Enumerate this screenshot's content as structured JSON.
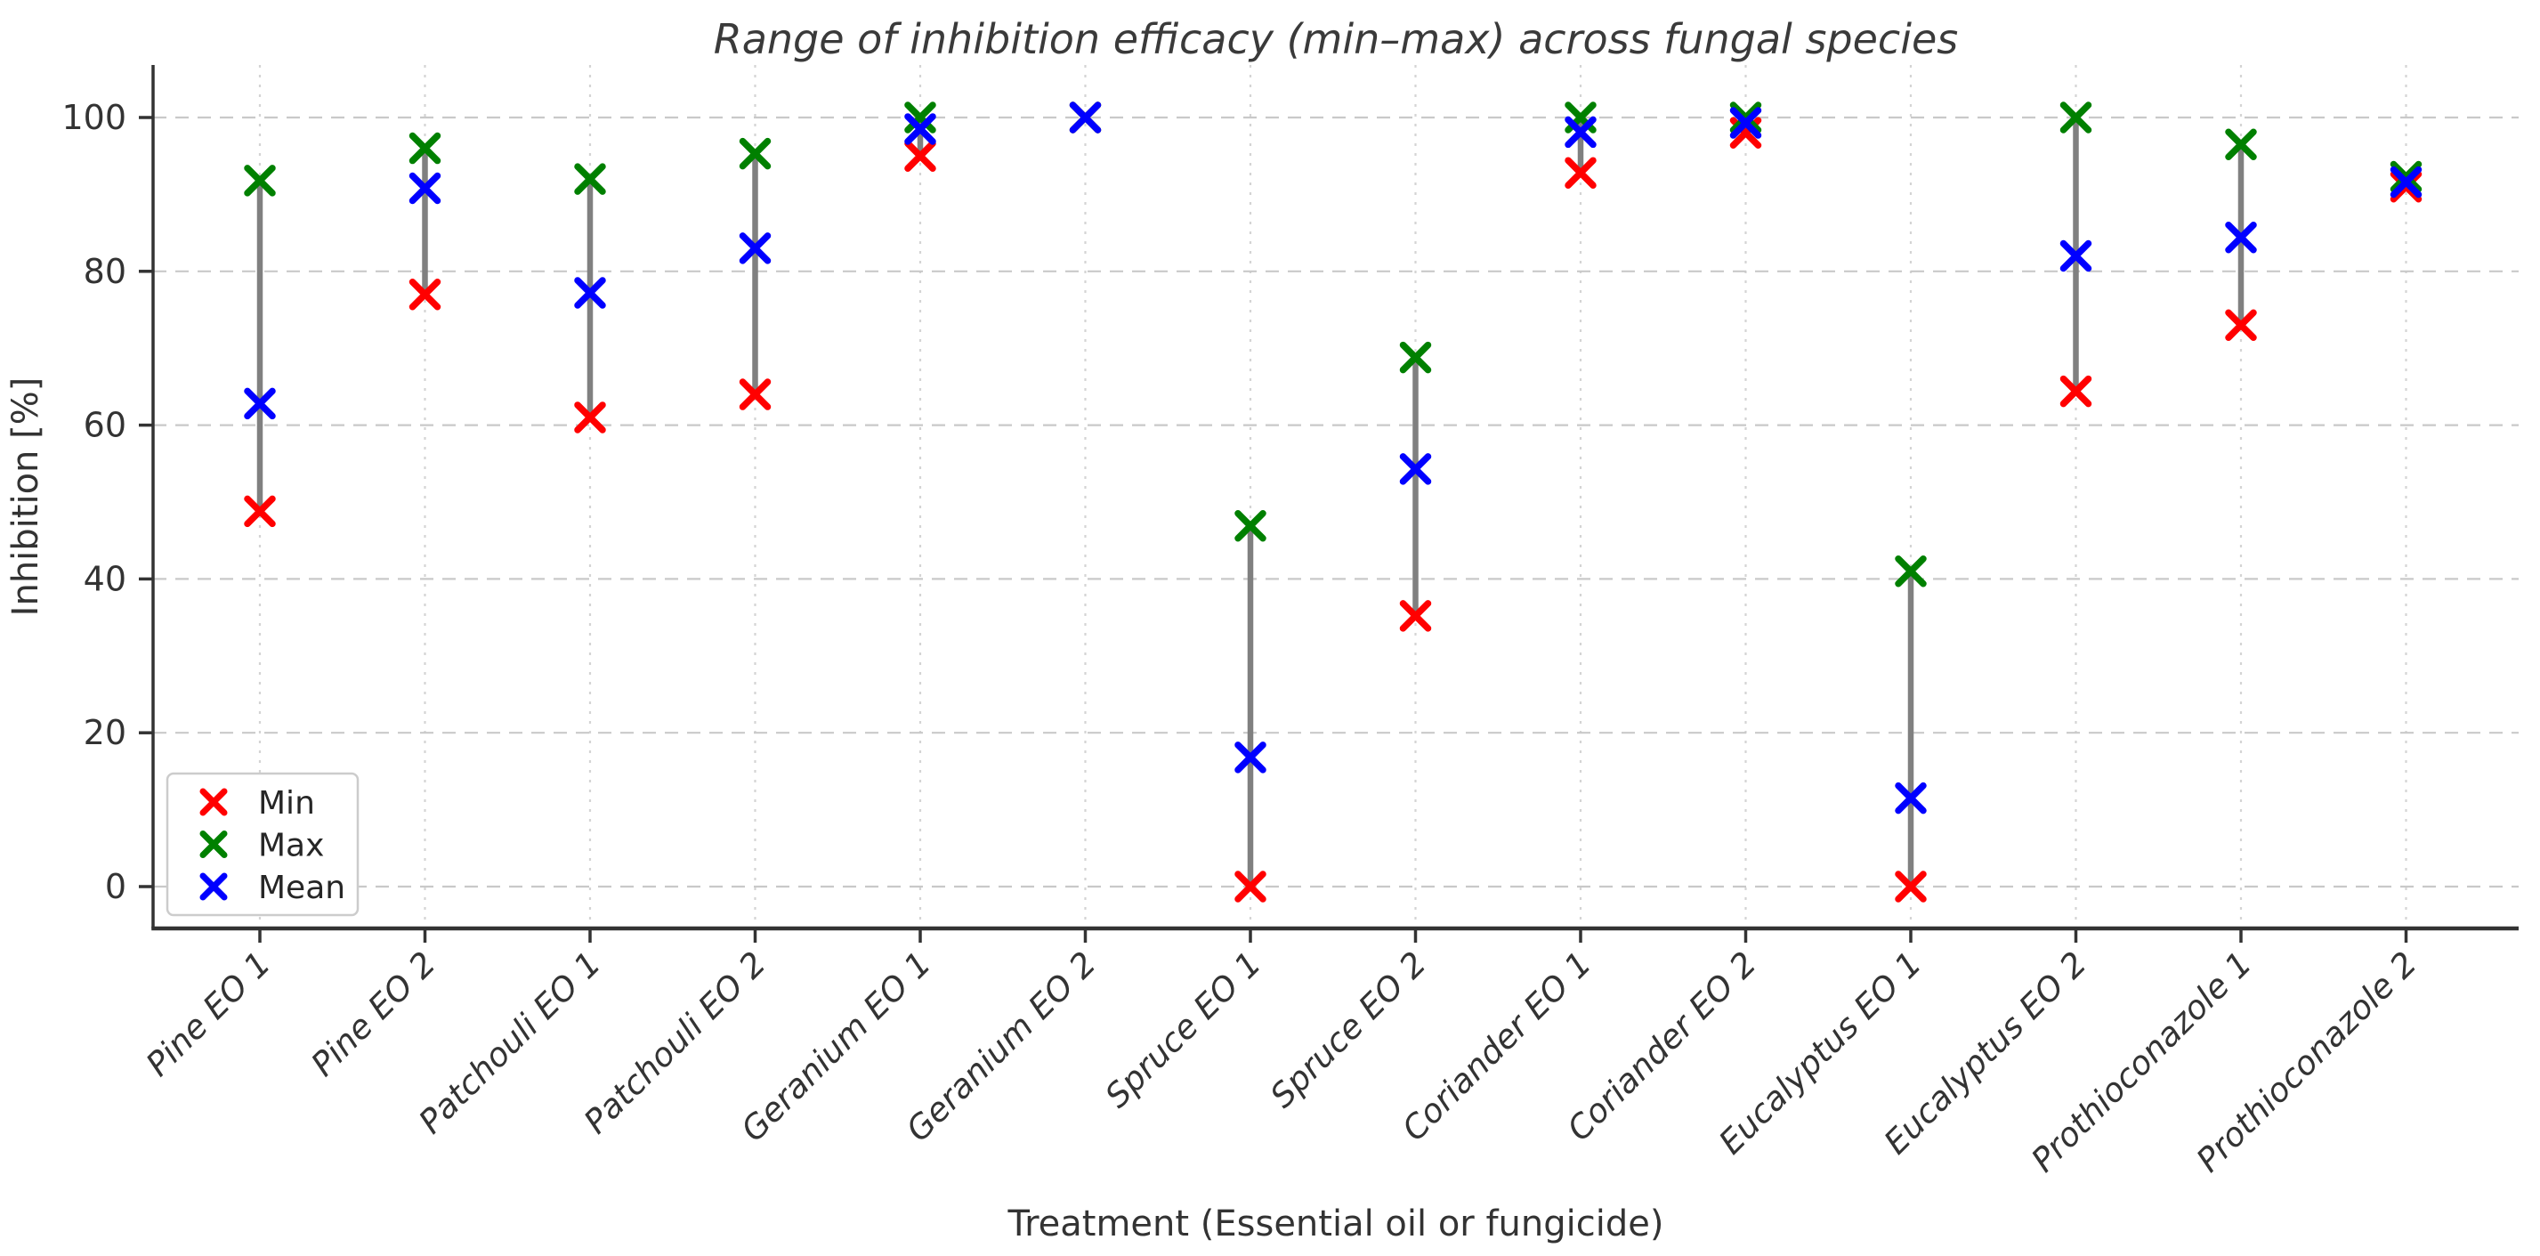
{
  "chart_data": {
    "type": "scatter",
    "title": "Range of inhibition efficacy (min–max) across fungal species",
    "xlabel": "Treatment (Essential oil or fungicide)",
    "ylabel": "Inhibition [%]",
    "categories": [
      "Pine EO 1",
      "Pine EO 2",
      "Patchouli EO 1",
      "Patchouli EO 2",
      "Geranium EO 1",
      "Geranium EO 2",
      "Spruce EO 1",
      "Spruce EO 2",
      "Coriander EO 1",
      "Coriander EO 2",
      "Eucalyptus EO 1",
      "Eucalyptus EO 2",
      "Prothioconazole 1",
      "Prothioconazole 2"
    ],
    "series": [
      {
        "name": "Min",
        "color": "#ff0000",
        "values": [
          48.8,
          77.0,
          61.0,
          64.0,
          95.0,
          100.0,
          0.0,
          35.2,
          92.8,
          98.0,
          0.0,
          64.4,
          73.0,
          91.0
        ]
      },
      {
        "name": "Max",
        "color": "#008000",
        "values": [
          91.8,
          96.0,
          92.0,
          95.3,
          100.0,
          100.0,
          46.9,
          68.8,
          100.0,
          100.0,
          41.0,
          100.0,
          96.5,
          92.3
        ]
      },
      {
        "name": "Mean",
        "color": "#0000ff",
        "values": [
          62.8,
          90.8,
          77.2,
          83.0,
          98.5,
          100.0,
          16.8,
          54.3,
          98.1,
          99.3,
          11.5,
          82.0,
          84.4,
          91.6
        ]
      }
    ],
    "range_lines": "vertical gray segment from Min to Max per category",
    "marker": "x",
    "yticks": [
      0,
      20,
      40,
      60,
      80,
      100
    ],
    "ylim": [
      -5,
      107
    ],
    "grid": true,
    "legend_position": "lower left"
  },
  "legend": {
    "items": [
      {
        "label": "Min",
        "color": "#ff0000"
      },
      {
        "label": "Max",
        "color": "#008000"
      },
      {
        "label": "Mean",
        "color": "#0000ff"
      }
    ]
  },
  "colors": {
    "range_line": "#808080",
    "grid_h": "#c9c9c9",
    "grid_v": "#d4d4d4",
    "spine": "#333333",
    "tick_text": "#333333",
    "title_text": "#3a3a3a",
    "legend_border": "#cccccc",
    "legend_bg": "#ffffff",
    "legend_text": "#262626"
  }
}
